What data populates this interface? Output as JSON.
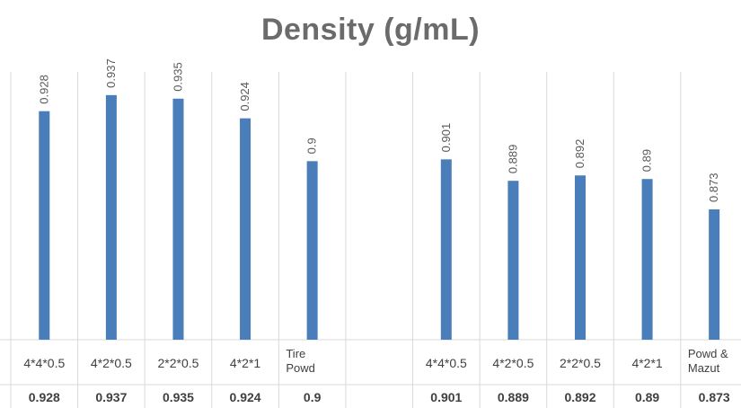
{
  "chart_data": {
    "type": "bar",
    "title": "Density (g/mL)",
    "xlabel": "",
    "ylabel": "",
    "grid": false,
    "bar_color": "#4a7ebb",
    "ylim": [
      0.8,
      0.95
    ],
    "categories": [
      "4*4*0.5",
      "4*2*0.5",
      "2*2*0.5",
      "4*2*1",
      "Tire Powd",
      "",
      "4*4*0.5",
      "4*2*0.5",
      "2*2*0.5",
      "4*2*1",
      "Powd & Mazut"
    ],
    "values": [
      0.928,
      0.937,
      0.935,
      0.924,
      0.9,
      null,
      0.901,
      0.889,
      0.892,
      0.89,
      0.873
    ],
    "data_labels": [
      "0.928",
      "0.937",
      "0.935",
      "0.924",
      "0.9",
      "",
      "0.901",
      "0.889",
      "0.892",
      "0.89",
      "0.873"
    ],
    "table_values": [
      "0.928",
      "0.937",
      "0.935",
      "0.924",
      "0.9",
      "",
      "0.901",
      "0.889",
      "0.892",
      "0.89",
      "0.873"
    ]
  }
}
